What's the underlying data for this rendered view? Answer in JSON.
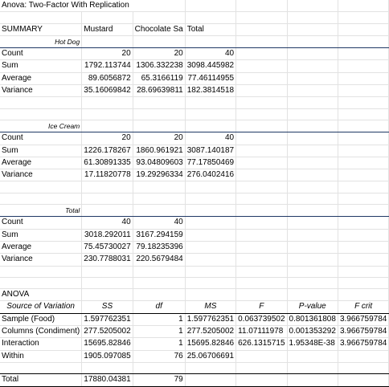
{
  "title": "Anova: Two-Factor With Replication",
  "summary": {
    "label": "SUMMARY",
    "headers": [
      "Mustard",
      "Chocolate Sa",
      "Total"
    ],
    "groups": [
      {
        "name": "Hot Dog",
        "rows": [
          {
            "label": "Count",
            "values": [
              "20",
              "20",
              "40"
            ]
          },
          {
            "label": "Sum",
            "values": [
              "1792.113744",
              "1306.332238",
              "3098.445982"
            ]
          },
          {
            "label": "Average",
            "values": [
              "89.6056872",
              "65.3166119",
              "77.46114955"
            ]
          },
          {
            "label": "Variance",
            "values": [
              "35.16069842",
              "28.69639811",
              "182.3814518"
            ]
          }
        ]
      },
      {
        "name": "Ice Cream",
        "rows": [
          {
            "label": "Count",
            "values": [
              "20",
              "20",
              "40"
            ]
          },
          {
            "label": "Sum",
            "values": [
              "1226.178267",
              "1860.961921",
              "3087.140187"
            ]
          },
          {
            "label": "Average",
            "values": [
              "61.30891335",
              "93.04809603",
              "77.17850469"
            ]
          },
          {
            "label": "Variance",
            "values": [
              "17.11820778",
              "19.29296334",
              "276.0402416"
            ]
          }
        ]
      },
      {
        "name": "Total",
        "rows": [
          {
            "label": "Count",
            "values": [
              "40",
              "40",
              ""
            ]
          },
          {
            "label": "Sum",
            "values": [
              "3018.292011",
              "3167.294159",
              ""
            ]
          },
          {
            "label": "Average",
            "values": [
              "75.45730027",
              "79.18235396",
              ""
            ]
          },
          {
            "label": "Variance",
            "values": [
              "230.7788031",
              "220.5679484",
              ""
            ]
          }
        ]
      }
    ]
  },
  "anova": {
    "label": "ANOVA",
    "headers": [
      "Source of Variation",
      "SS",
      "df",
      "MS",
      "F",
      "P-value",
      "F crit"
    ],
    "rows": [
      {
        "source": "Sample (Food)",
        "ss": "1.597762351",
        "df": "1",
        "ms": "1.597762351",
        "f": "0.063739502",
        "p": "0.801361808",
        "fcrit": "3.966759784"
      },
      {
        "source": "Columns (Condiment)",
        "ss": "277.5205002",
        "df": "1",
        "ms": "277.5205002",
        "f": "11.07111978",
        "p": "0.001353292",
        "fcrit": "3.966759784"
      },
      {
        "source": "Interaction",
        "ss": "15695.82846",
        "df": "1",
        "ms": "15695.82846",
        "f": "626.1315715",
        "p": "1.95348E-38",
        "fcrit": "3.966759784"
      },
      {
        "source": "Within",
        "ss": "1905.097085",
        "df": "76",
        "ms": "25.06706691",
        "f": "",
        "p": "",
        "fcrit": ""
      }
    ],
    "total": {
      "source": "Total",
      "ss": "17880.04381",
      "df": "79"
    }
  }
}
